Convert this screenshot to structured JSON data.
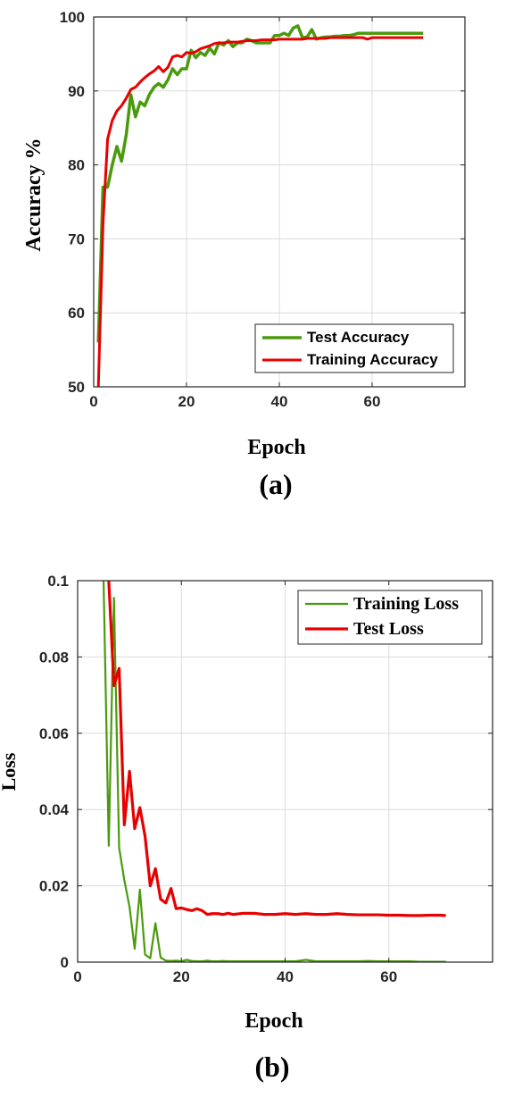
{
  "chart_data": [
    {
      "type": "line",
      "panel": "(a)",
      "xlabel": "Epoch",
      "ylabel": "Accuracy %",
      "xlim": [
        0,
        80
      ],
      "ylim": [
        50,
        100
      ],
      "xticks": [
        0,
        20,
        40,
        60
      ],
      "yticks": [
        50,
        60,
        70,
        80,
        90,
        100
      ],
      "grid": true,
      "legend_position": "bottom-right",
      "series": [
        {
          "name": "Test Accuracy",
          "color": "#4a9a0e",
          "x": [
            1,
            2,
            3,
            4,
            5,
            6,
            7,
            8,
            9,
            10,
            11,
            12,
            13,
            14,
            15,
            16,
            17,
            18,
            19,
            20,
            21,
            22,
            23,
            24,
            25,
            26,
            27,
            28,
            29,
            30,
            31,
            32,
            33,
            34,
            35,
            36,
            37,
            38,
            39,
            40,
            41,
            42,
            43,
            44,
            45,
            46,
            47,
            48,
            49,
            50,
            51,
            52,
            53,
            54,
            55,
            56,
            57,
            58,
            59,
            60,
            61,
            62,
            63,
            64,
            65,
            66,
            67,
            68,
            69,
            70,
            71
          ],
          "y": [
            56,
            77,
            77,
            80,
            82.5,
            80.5,
            84,
            89.5,
            86.5,
            88.5,
            88,
            89.5,
            90.5,
            91,
            90.5,
            91.5,
            93,
            92.2,
            93,
            93,
            95.5,
            94.5,
            95.2,
            94.8,
            95.8,
            95,
            96.5,
            96.2,
            96.8,
            96,
            96.5,
            96.5,
            97,
            96.8,
            96.5,
            96.5,
            96.5,
            96.5,
            97.5,
            97.5,
            97.8,
            97.5,
            98.5,
            98.8,
            97.2,
            97.3,
            98.3,
            97,
            97.2,
            97.3,
            97.3,
            97.4,
            97.4,
            97.5,
            97.5,
            97.6,
            97.8,
            97.8,
            97.8,
            97.8,
            97.8,
            97.8,
            97.8,
            97.8,
            97.8,
            97.8,
            97.8,
            97.8,
            97.8,
            97.8,
            97.8
          ]
        },
        {
          "name": "Training Accuracy",
          "color": "#e80000",
          "x": [
            1,
            2,
            3,
            4,
            5,
            6,
            7,
            8,
            9,
            10,
            11,
            12,
            13,
            14,
            15,
            16,
            17,
            18,
            19,
            20,
            21,
            22,
            23,
            24,
            25,
            26,
            27,
            28,
            29,
            30,
            31,
            32,
            33,
            34,
            35,
            36,
            37,
            38,
            39,
            40,
            41,
            42,
            43,
            44,
            45,
            46,
            47,
            48,
            49,
            50,
            51,
            52,
            53,
            54,
            55,
            56,
            57,
            58,
            59,
            60,
            61,
            62,
            63,
            64,
            65,
            66,
            67,
            68,
            69,
            70,
            71
          ],
          "y": [
            50,
            72,
            83.5,
            86,
            87.3,
            88,
            89,
            90.2,
            90.5,
            91.2,
            91.8,
            92.3,
            92.7,
            93.3,
            92.6,
            93.2,
            94.6,
            94.8,
            94.6,
            95.2,
            95.1,
            95.3,
            95.7,
            95.9,
            96.1,
            96.4,
            96.5,
            96.5,
            96.6,
            96.6,
            96.6,
            96.7,
            96.8,
            96.8,
            96.8,
            96.9,
            96.9,
            96.9,
            96.9,
            97,
            97,
            97,
            97,
            97,
            97,
            97.1,
            97.1,
            97.1,
            97.1,
            97.1,
            97.2,
            97.2,
            97.2,
            97.2,
            97.2,
            97.2,
            97.2,
            97.2,
            97,
            97.2,
            97.2,
            97.2,
            97.2,
            97.2,
            97.2,
            97.2,
            97.2,
            97.2,
            97.2,
            97.2,
            97.2
          ]
        }
      ]
    },
    {
      "type": "line",
      "panel": "(b)",
      "xlabel": "Epoch",
      "ylabel": "Loss",
      "xlim": [
        0,
        80
      ],
      "ylim": [
        0,
        0.1
      ],
      "xticks": [
        0,
        20,
        40,
        60
      ],
      "yticks": [
        0,
        0.02,
        0.04,
        0.06,
        0.08,
        0.1
      ],
      "grid": true,
      "legend_position": "top-right",
      "series": [
        {
          "name": "Training Loss",
          "color": "#4a9a0e",
          "x": [
            5,
            6,
            7,
            8,
            9,
            10,
            11,
            12,
            13,
            14,
            15,
            16,
            17,
            18,
            19,
            20,
            21,
            22,
            23,
            24,
            25,
            26,
            27,
            28,
            29,
            30,
            32,
            34,
            36,
            38,
            40,
            42,
            44,
            46,
            48,
            50,
            52,
            54,
            56,
            58,
            60,
            62,
            64,
            66,
            68,
            70,
            71
          ],
          "y": [
            0.1,
            0.0305,
            0.0955,
            0.03,
            0.0215,
            0.0145,
            0.0035,
            0.019,
            0.002,
            0.001,
            0.0102,
            0.0012,
            0.0004,
            0.0003,
            0.0004,
            0.0002,
            0.0006,
            0.0003,
            0.0002,
            0.0002,
            0.0004,
            0.0002,
            0.0002,
            0.0003,
            0.0002,
            0.0002,
            0.0002,
            0.0002,
            0.0002,
            0.0002,
            0.0002,
            0.0002,
            0.0006,
            0.0002,
            0.0002,
            0.0002,
            0.0002,
            0.0002,
            0.0003,
            0.0002,
            0.0002,
            0.0002,
            0.0002,
            0.0001,
            0.0001,
            0.0001,
            0.0001
          ]
        },
        {
          "name": "Test Loss",
          "color": "#e80000",
          "x": [
            6,
            7,
            8,
            9,
            10,
            11,
            12,
            13,
            14,
            15,
            16,
            17,
            18,
            19,
            20,
            21,
            22,
            23,
            24,
            25,
            26,
            27,
            28,
            29,
            30,
            32,
            34,
            36,
            38,
            40,
            42,
            44,
            46,
            48,
            50,
            52,
            54,
            56,
            58,
            60,
            62,
            64,
            66,
            68,
            70,
            71
          ],
          "y": [
            0.1,
            0.0725,
            0.077,
            0.036,
            0.05,
            0.035,
            0.0405,
            0.033,
            0.02,
            0.0245,
            0.0165,
            0.0155,
            0.0193,
            0.014,
            0.0142,
            0.0138,
            0.0135,
            0.014,
            0.0135,
            0.0125,
            0.0127,
            0.0127,
            0.0125,
            0.0128,
            0.0125,
            0.0128,
            0.0128,
            0.0125,
            0.0125,
            0.0127,
            0.0125,
            0.0127,
            0.0125,
            0.0125,
            0.0127,
            0.0125,
            0.0124,
            0.0124,
            0.0124,
            0.0123,
            0.0123,
            0.0122,
            0.0122,
            0.0123,
            0.0123,
            0.0122
          ]
        }
      ]
    }
  ],
  "captions": [
    "(a)",
    "(b)"
  ]
}
